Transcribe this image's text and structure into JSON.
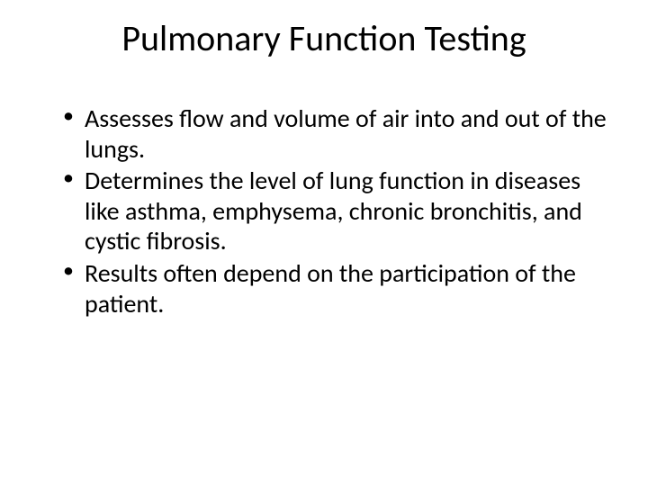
{
  "slide": {
    "title": "Pulmonary Function Testing",
    "bullets": [
      "Assesses flow and volume of air into and out of the lungs.",
      "Determines the level of lung function in diseases like asthma, emphysema, chronic bronchitis, and cystic fibrosis.",
      "Results often depend on the participation of the patient."
    ],
    "background_color": "#ffffff",
    "text_color": "#000000",
    "title_fontsize": 40,
    "body_fontsize": 28,
    "font_family": "Calibri"
  }
}
